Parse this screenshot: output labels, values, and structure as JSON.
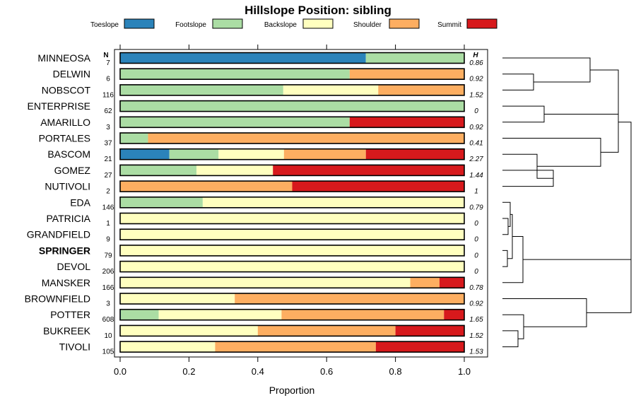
{
  "chart_data": {
    "type": "stacked-bar",
    "title": "Hillslope Position: sibling",
    "xlabel": "Proportion",
    "ylabel": "",
    "xlim": [
      0,
      1
    ],
    "xticks": [
      "0.0",
      "0.2",
      "0.4",
      "0.6",
      "0.8",
      "1.0"
    ],
    "n_header": "N",
    "h_header": "H",
    "legend": [
      {
        "name": "Toeslope",
        "color": "#2b83ba"
      },
      {
        "name": "Footslope",
        "color": "#abdda4"
      },
      {
        "name": "Backslope",
        "color": "#ffffbf"
      },
      {
        "name": "Shoulder",
        "color": "#fdae61"
      },
      {
        "name": "Summit",
        "color": "#d7191c"
      }
    ],
    "rows": [
      {
        "name": "MINNEOSA",
        "n": "7",
        "h": "0.86",
        "bold": false,
        "values": [
          0.714,
          0.286,
          0,
          0,
          0
        ]
      },
      {
        "name": "DELWIN",
        "n": "6",
        "h": "0.92",
        "bold": false,
        "values": [
          0,
          0.667,
          0,
          0.333,
          0
        ]
      },
      {
        "name": "NOBSCOT",
        "n": "116",
        "h": "1.52",
        "bold": false,
        "values": [
          0,
          0.474,
          0.276,
          0.25,
          0
        ]
      },
      {
        "name": "ENTERPRISE",
        "n": "62",
        "h": "0",
        "bold": false,
        "values": [
          0,
          1.0,
          0,
          0,
          0
        ]
      },
      {
        "name": "AMARILLO",
        "n": "3",
        "h": "0.92",
        "bold": false,
        "values": [
          0,
          0.667,
          0,
          0,
          0.333
        ]
      },
      {
        "name": "PORTALES",
        "n": "37",
        "h": "0.41",
        "bold": false,
        "values": [
          0,
          0.081,
          0,
          0.919,
          0
        ]
      },
      {
        "name": "BASCOM",
        "n": "21",
        "h": "2.27",
        "bold": false,
        "values": [
          0.143,
          0.143,
          0.19,
          0.238,
          0.286
        ]
      },
      {
        "name": "GOMEZ",
        "n": "27",
        "h": "1.44",
        "bold": false,
        "values": [
          0,
          0.222,
          0.222,
          0,
          0.556
        ]
      },
      {
        "name": "NUTIVOLI",
        "n": "2",
        "h": "1",
        "bold": false,
        "values": [
          0,
          0,
          0,
          0.5,
          0.5
        ]
      },
      {
        "name": "EDA",
        "n": "146",
        "h": "0.79",
        "bold": false,
        "values": [
          0,
          0.24,
          0.76,
          0,
          0
        ]
      },
      {
        "name": "PATRICIA",
        "n": "1",
        "h": "0",
        "bold": false,
        "values": [
          0,
          0,
          1.0,
          0,
          0
        ]
      },
      {
        "name": "GRANDFIELD",
        "n": "9",
        "h": "0",
        "bold": false,
        "values": [
          0,
          0,
          1.0,
          0,
          0
        ]
      },
      {
        "name": "SPRINGER",
        "n": "79",
        "h": "0",
        "bold": true,
        "values": [
          0,
          0,
          1.0,
          0,
          0
        ]
      },
      {
        "name": "DEVOL",
        "n": "206",
        "h": "0",
        "bold": false,
        "values": [
          0,
          0,
          1.0,
          0,
          0
        ]
      },
      {
        "name": "MANSKER",
        "n": "166",
        "h": "0.78",
        "bold": false,
        "values": [
          0,
          0,
          0.843,
          0.085,
          0.072
        ]
      },
      {
        "name": "BROWNFIELD",
        "n": "3",
        "h": "0.92",
        "bold": false,
        "values": [
          0,
          0,
          0.333,
          0.667,
          0
        ]
      },
      {
        "name": "POTTER",
        "n": "608",
        "h": "1.65",
        "bold": false,
        "values": [
          0.002,
          0.11,
          0.357,
          0.472,
          0.059
        ]
      },
      {
        "name": "BUKREEK",
        "n": "10",
        "h": "1.52",
        "bold": false,
        "values": [
          0,
          0,
          0.4,
          0.4,
          0.2
        ]
      },
      {
        "name": "TIVOLI",
        "n": "105",
        "h": "1.53",
        "bold": false,
        "values": [
          0,
          0,
          0.276,
          0.467,
          0.257
        ]
      }
    ]
  }
}
